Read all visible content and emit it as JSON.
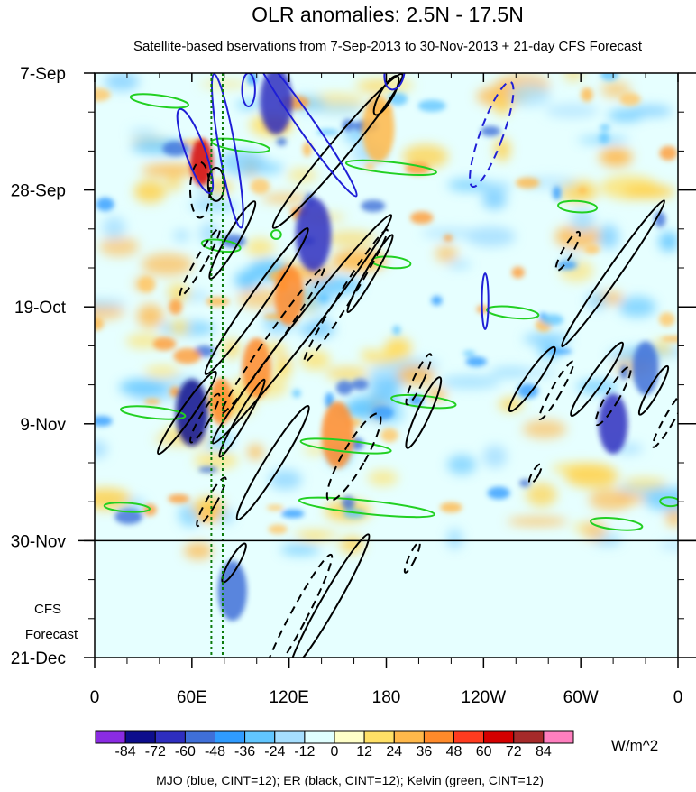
{
  "chart_data": {
    "type": "heatmap",
    "title": "OLR anomalies: 2.5N - 17.5N",
    "subtitle": "Satellite-based bservations from 7-Sep-2013 to 30-Nov-2013 + 21-day CFS Forecast",
    "x_ticks": [
      {
        "lon": 0,
        "label": "0"
      },
      {
        "lon": 60,
        "label": "60E"
      },
      {
        "lon": 120,
        "label": "120E"
      },
      {
        "lon": 180,
        "label": "180"
      },
      {
        "lon": 240,
        "label": "120W"
      },
      {
        "lon": 300,
        "label": "60W"
      },
      {
        "lon": 360,
        "label": "0"
      }
    ],
    "xlim": [
      0,
      360
    ],
    "y_ticks": [
      {
        "day": 0,
        "label": "7-Sep"
      },
      {
        "day": 21,
        "label": "28-Sep"
      },
      {
        "day": 42,
        "label": "19-Oct"
      },
      {
        "day": 63,
        "label": "9-Nov"
      },
      {
        "day": 84,
        "label": "30-Nov"
      },
      {
        "day": 105,
        "label": "21-Dec"
      }
    ],
    "ylim": [
      0,
      105
    ],
    "forecast_start_day": 84,
    "forecast_label_line1": "CFS",
    "forecast_label_line2": "Forecast",
    "reference_lons": [
      72,
      79
    ],
    "colorbar": {
      "levels": [
        "-84",
        "-72",
        "-60",
        "-48",
        "-36",
        "-24",
        "-12",
        "0",
        "12",
        "24",
        "36",
        "48",
        "60",
        "72",
        "84"
      ],
      "colors": [
        "#8a2be2",
        "#0d0d8c",
        "#2e2ebf",
        "#3f6fd8",
        "#2f9bff",
        "#61c6ff",
        "#a6dfff",
        "#e0ffff",
        "#ffffc8",
        "#ffe066",
        "#ffb84a",
        "#ff8a2a",
        "#ff3b1f",
        "#d40000",
        "#a52a2a",
        "#ff7fbf"
      ],
      "units": "W/m^2"
    },
    "caption": "MJO (blue, CINT=12); ER (black, CINT=12); Kelvin (green, CINT=12)",
    "mjo_contours": [
      {
        "lon": 62,
        "day": 14,
        "rlon": 6,
        "rday": 8,
        "angle": -20,
        "dash": false
      },
      {
        "lon": 82,
        "day": 14,
        "rlon": 5,
        "rday": 14,
        "angle": -10,
        "dash": false
      },
      {
        "lon": 95,
        "day": 3,
        "rlon": 4,
        "rday": 3,
        "angle": 0,
        "dash": false
      },
      {
        "lon": 130,
        "day": 9,
        "rlon": 5,
        "rday": 16,
        "angle": -35,
        "dash": false
      },
      {
        "lon": 185,
        "day": 0,
        "rlon": 6,
        "rday": 3,
        "angle": 10,
        "dash": false
      },
      {
        "lon": 245,
        "day": 11,
        "rlon": 7,
        "rday": 10,
        "angle": 20,
        "dash": true
      },
      {
        "lon": 241,
        "day": 41,
        "rlon": 2,
        "rday": 5,
        "angle": 0,
        "dash": false
      }
    ],
    "er_contours": [
      {
        "lon": 75,
        "day": 20,
        "rlon": 5,
        "rday": 3,
        "angle": 0,
        "dash": false
      },
      {
        "lon": 65,
        "day": 21,
        "rlon": 6,
        "rday": 5,
        "angle": 0,
        "dash": true
      },
      {
        "lon": 65,
        "day": 34,
        "rlon": 3,
        "rday": 7,
        "angle": 30,
        "dash": true
      },
      {
        "lon": 85,
        "day": 30,
        "rlon": 4,
        "rday": 8,
        "angle": 30,
        "dash": false
      },
      {
        "lon": 100,
        "day": 41,
        "rlon": 5,
        "rday": 16,
        "angle": 35,
        "dash": false
      },
      {
        "lon": 128,
        "day": 46,
        "rlon": 6,
        "rday": 26,
        "angle": 38,
        "dash": false
      },
      {
        "lon": 110,
        "day": 48,
        "rlon": 4,
        "rday": 16,
        "angle": 35,
        "dash": true
      },
      {
        "lon": 155,
        "day": 40,
        "rlon": 4,
        "rday": 14,
        "angle": 32,
        "dash": true
      },
      {
        "lon": 170,
        "day": 36,
        "rlon": 3,
        "rday": 8,
        "angle": 30,
        "dash": false
      },
      {
        "lon": 150,
        "day": 14,
        "rlon": 6,
        "rday": 18,
        "angle": 40,
        "dash": false
      },
      {
        "lon": 180,
        "day": 4,
        "rlon": 4,
        "rday": 4,
        "angle": 30,
        "dash": false
      },
      {
        "lon": 57,
        "day": 61,
        "rlon": 4,
        "rday": 9,
        "angle": 35,
        "dash": false
      },
      {
        "lon": 68,
        "day": 62,
        "rlon": 3,
        "rday": 5,
        "angle": 30,
        "dash": true
      },
      {
        "lon": 72,
        "day": 77,
        "rlon": 3,
        "rday": 5,
        "angle": 30,
        "dash": true
      },
      {
        "lon": 91,
        "day": 62,
        "rlon": 3,
        "rday": 8,
        "angle": 30,
        "dash": false
      },
      {
        "lon": 110,
        "day": 70,
        "rlon": 5,
        "rday": 12,
        "angle": 32,
        "dash": false
      },
      {
        "lon": 160,
        "day": 69,
        "rlon": 7,
        "rday": 9,
        "angle": 30,
        "dash": true
      },
      {
        "lon": 203,
        "day": 61,
        "rlon": 4,
        "rday": 7,
        "angle": 25,
        "dash": false
      },
      {
        "lon": 200,
        "day": 55,
        "rlon": 3,
        "rday": 5,
        "angle": 25,
        "dash": true
      },
      {
        "lon": 292,
        "day": 32,
        "rlon": 3,
        "rday": 4,
        "angle": 30,
        "dash": true
      },
      {
        "lon": 320,
        "day": 36,
        "rlon": 4,
        "rday": 16,
        "angle": 35,
        "dash": false
      },
      {
        "lon": 270,
        "day": 55,
        "rlon": 4,
        "rday": 7,
        "angle": 35,
        "dash": false
      },
      {
        "lon": 285,
        "day": 57,
        "rlon": 3,
        "rday": 6,
        "angle": 30,
        "dash": true
      },
      {
        "lon": 310,
        "day": 55,
        "rlon": 4,
        "rday": 8,
        "angle": 35,
        "dash": false
      },
      {
        "lon": 320,
        "day": 58,
        "rlon": 4,
        "rday": 6,
        "angle": 30,
        "dash": true
      },
      {
        "lon": 345,
        "day": 57,
        "rlon": 3,
        "rday": 5,
        "angle": 30,
        "dash": false
      },
      {
        "lon": 355,
        "day": 62,
        "rlon": 3,
        "rday": 6,
        "angle": 30,
        "dash": true
      },
      {
        "lon": 272,
        "day": 72,
        "rlon": 2,
        "rday": 2,
        "angle": 30,
        "dash": true
      },
      {
        "lon": 86,
        "day": 88,
        "rlon": 3,
        "rday": 4,
        "angle": 30,
        "dash": false
      },
      {
        "lon": 125,
        "day": 98,
        "rlon": 5,
        "rday": 13,
        "angle": 28,
        "dash": true
      },
      {
        "lon": 145,
        "day": 95,
        "rlon": 5,
        "rday": 14,
        "angle": 30,
        "dash": false
      },
      {
        "lon": 196,
        "day": 87,
        "rlon": 2,
        "rday": 3,
        "angle": 25,
        "dash": true
      }
    ],
    "kelvin_contours": [
      {
        "lon": 40,
        "day": 5,
        "rlon": 18,
        "rday": 1,
        "angle": 8,
        "dash": false
      },
      {
        "lon": 90,
        "day": 13,
        "rlon": 18,
        "rday": 1,
        "angle": 8,
        "dash": false
      },
      {
        "lon": 112,
        "day": 29,
        "rlon": 3,
        "rday": 0.8,
        "angle": 0,
        "dash": false
      },
      {
        "lon": 78,
        "day": 31,
        "rlon": 12,
        "rday": 1,
        "angle": 8,
        "dash": false
      },
      {
        "lon": 183,
        "day": 17,
        "rlon": 28,
        "rday": 1,
        "angle": 6,
        "dash": false
      },
      {
        "lon": 298,
        "day": 24,
        "rlon": 12,
        "rday": 1,
        "angle": 4,
        "dash": false
      },
      {
        "lon": 183,
        "day": 34,
        "rlon": 12,
        "rday": 1,
        "angle": 5,
        "dash": false
      },
      {
        "lon": 258,
        "day": 43,
        "rlon": 16,
        "rday": 1,
        "angle": 6,
        "dash": false
      },
      {
        "lon": 36,
        "day": 61,
        "rlon": 20,
        "rday": 1,
        "angle": 6,
        "dash": false
      },
      {
        "lon": 203,
        "day": 59,
        "rlon": 20,
        "rday": 1,
        "angle": 6,
        "dash": false
      },
      {
        "lon": 155,
        "day": 67,
        "rlon": 28,
        "rday": 1,
        "angle": 6,
        "dash": false
      },
      {
        "lon": 168,
        "day": 78,
        "rlon": 42,
        "rday": 1.2,
        "angle": 6,
        "dash": false
      },
      {
        "lon": 20,
        "day": 78,
        "rlon": 14,
        "rday": 0.8,
        "angle": 4,
        "dash": false
      },
      {
        "lon": 322,
        "day": 81,
        "rlon": 16,
        "rday": 1,
        "angle": 6,
        "dash": false
      },
      {
        "lon": 355,
        "day": 77,
        "rlon": 6,
        "rday": 0.8,
        "angle": 4,
        "dash": false
      }
    ]
  }
}
